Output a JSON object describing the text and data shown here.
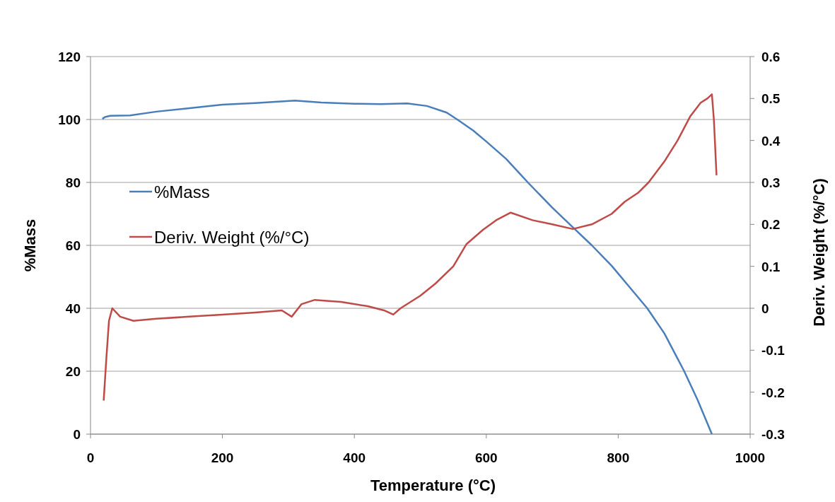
{
  "chart_data": {
    "type": "line",
    "xlabel": "Temperature (°C)",
    "ylabel": "%Mass",
    "y2label": "Deriv. Weight (%/°C)",
    "xlim": [
      0,
      1000
    ],
    "xticks": [
      0,
      200,
      400,
      600,
      800,
      1000
    ],
    "ylim": [
      0,
      120
    ],
    "yticks": [
      0,
      20,
      40,
      60,
      80,
      100,
      120
    ],
    "y2lim": [
      -0.3,
      0.6
    ],
    "y2ticks": [
      -0.3,
      -0.2,
      -0.1,
      0,
      0.1,
      0.2,
      0.3,
      0.4,
      0.5,
      0.6
    ],
    "grid": "y",
    "legend": "left",
    "marker": "none",
    "line_style": "solid",
    "series": [
      {
        "name": "%Mass",
        "color": "#4a7ebb",
        "x": [
          18,
          22,
          30,
          60,
          100,
          150,
          200,
          250,
          310,
          350,
          400,
          440,
          480,
          510,
          540,
          556,
          580,
          600,
          630,
          663,
          700,
          730,
          760,
          790,
          820,
          844,
          870,
          900,
          920,
          942
        ],
        "values": [
          100.2,
          100.8,
          101.2,
          101.3,
          102.5,
          103.6,
          104.7,
          105.2,
          106,
          105.4,
          105,
          104.9,
          105.1,
          104.3,
          102.2,
          100,
          96.5,
          93,
          87.5,
          80,
          72,
          66,
          60,
          53.5,
          46,
          40,
          32,
          20,
          11,
          0
        ]
      },
      {
        "name": "Deriv. Weight (%/°C)",
        "color": "#be4b48",
        "axis": "y2",
        "x": [
          20,
          24,
          28,
          33,
          45,
          65,
          100,
          150,
          200,
          250,
          290,
          305,
          320,
          340,
          380,
          420,
          445,
          459,
          470,
          500,
          523,
          550,
          570,
          595,
          615,
          637,
          670,
          700,
          731,
          760,
          790,
          810,
          830,
          846,
          870,
          890,
          909,
          925,
          935,
          942,
          945,
          949
        ],
        "values": [
          -0.22,
          -0.12,
          -0.03,
          0,
          -0.02,
          -0.03,
          -0.025,
          -0.02,
          -0.015,
          -0.01,
          -0.005,
          -0.02,
          0.01,
          0.02,
          0.015,
          0.005,
          -0.005,
          -0.015,
          0,
          0.03,
          0.059,
          0.1,
          0.153,
          0.187,
          0.21,
          0.228,
          0.21,
          0.2,
          0.189,
          0.2,
          0.225,
          0.254,
          0.275,
          0.3,
          0.35,
          0.4,
          0.457,
          0.49,
          0.5,
          0.51,
          0.45,
          0.317
        ]
      }
    ]
  }
}
